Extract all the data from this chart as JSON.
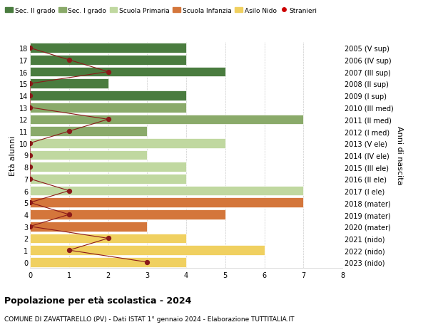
{
  "ages": [
    18,
    17,
    16,
    15,
    14,
    13,
    12,
    11,
    10,
    9,
    8,
    7,
    6,
    5,
    4,
    3,
    2,
    1,
    0
  ],
  "right_labels": [
    "2005 (V sup)",
    "2006 (IV sup)",
    "2007 (III sup)",
    "2008 (II sup)",
    "2009 (I sup)",
    "2010 (III med)",
    "2011 (II med)",
    "2012 (I med)",
    "2013 (V ele)",
    "2014 (IV ele)",
    "2015 (III ele)",
    "2016 (II ele)",
    "2017 (I ele)",
    "2018 (mater)",
    "2019 (mater)",
    "2020 (mater)",
    "2021 (nido)",
    "2022 (nido)",
    "2023 (nido)"
  ],
  "bar_values": [
    4,
    4,
    5,
    2,
    4,
    4,
    7,
    3,
    5,
    3,
    4,
    4,
    7,
    7,
    5,
    3,
    4,
    6,
    4
  ],
  "bar_colors": [
    "#4a7c3f",
    "#4a7c3f",
    "#4a7c3f",
    "#4a7c3f",
    "#4a7c3f",
    "#8aaa6a",
    "#8aaa6a",
    "#8aaa6a",
    "#c0d8a0",
    "#c0d8a0",
    "#c0d8a0",
    "#c0d8a0",
    "#c0d8a0",
    "#d4763b",
    "#d4763b",
    "#d4763b",
    "#f0d060",
    "#f0d060",
    "#f0d060"
  ],
  "stranieri_ages": [
    18,
    17,
    16,
    15,
    14,
    13,
    12,
    11,
    10,
    9,
    8,
    7,
    6,
    5,
    4,
    3,
    2,
    1,
    0
  ],
  "stranieri_values": [
    0,
    1,
    2,
    0,
    0,
    0,
    2,
    1,
    0,
    0,
    0,
    0,
    1,
    0,
    1,
    0,
    2,
    1,
    3
  ],
  "legend_labels": [
    "Sec. II grado",
    "Sec. I grado",
    "Scuola Primaria",
    "Scuola Infanzia",
    "Asilo Nido",
    "Stranieri"
  ],
  "legend_colors": [
    "#4a7c3f",
    "#8aaa6a",
    "#c0d8a0",
    "#d4763b",
    "#f0d060",
    "#cc0000"
  ],
  "ylabel": "Età alunni",
  "right_ylabel": "Anni di nascita",
  "title": "Popolazione per età scolastica - 2024",
  "subtitle": "COMUNE DI ZAVATTARELLO (PV) - Dati ISTAT 1° gennaio 2024 - Elaborazione TUTTITALIA.IT",
  "xlim": [
    0,
    8
  ],
  "bg_color": "#ffffff",
  "grid_color": "#cccccc",
  "stranieri_line_color": "#8b1a1a",
  "bar_height": 0.82
}
